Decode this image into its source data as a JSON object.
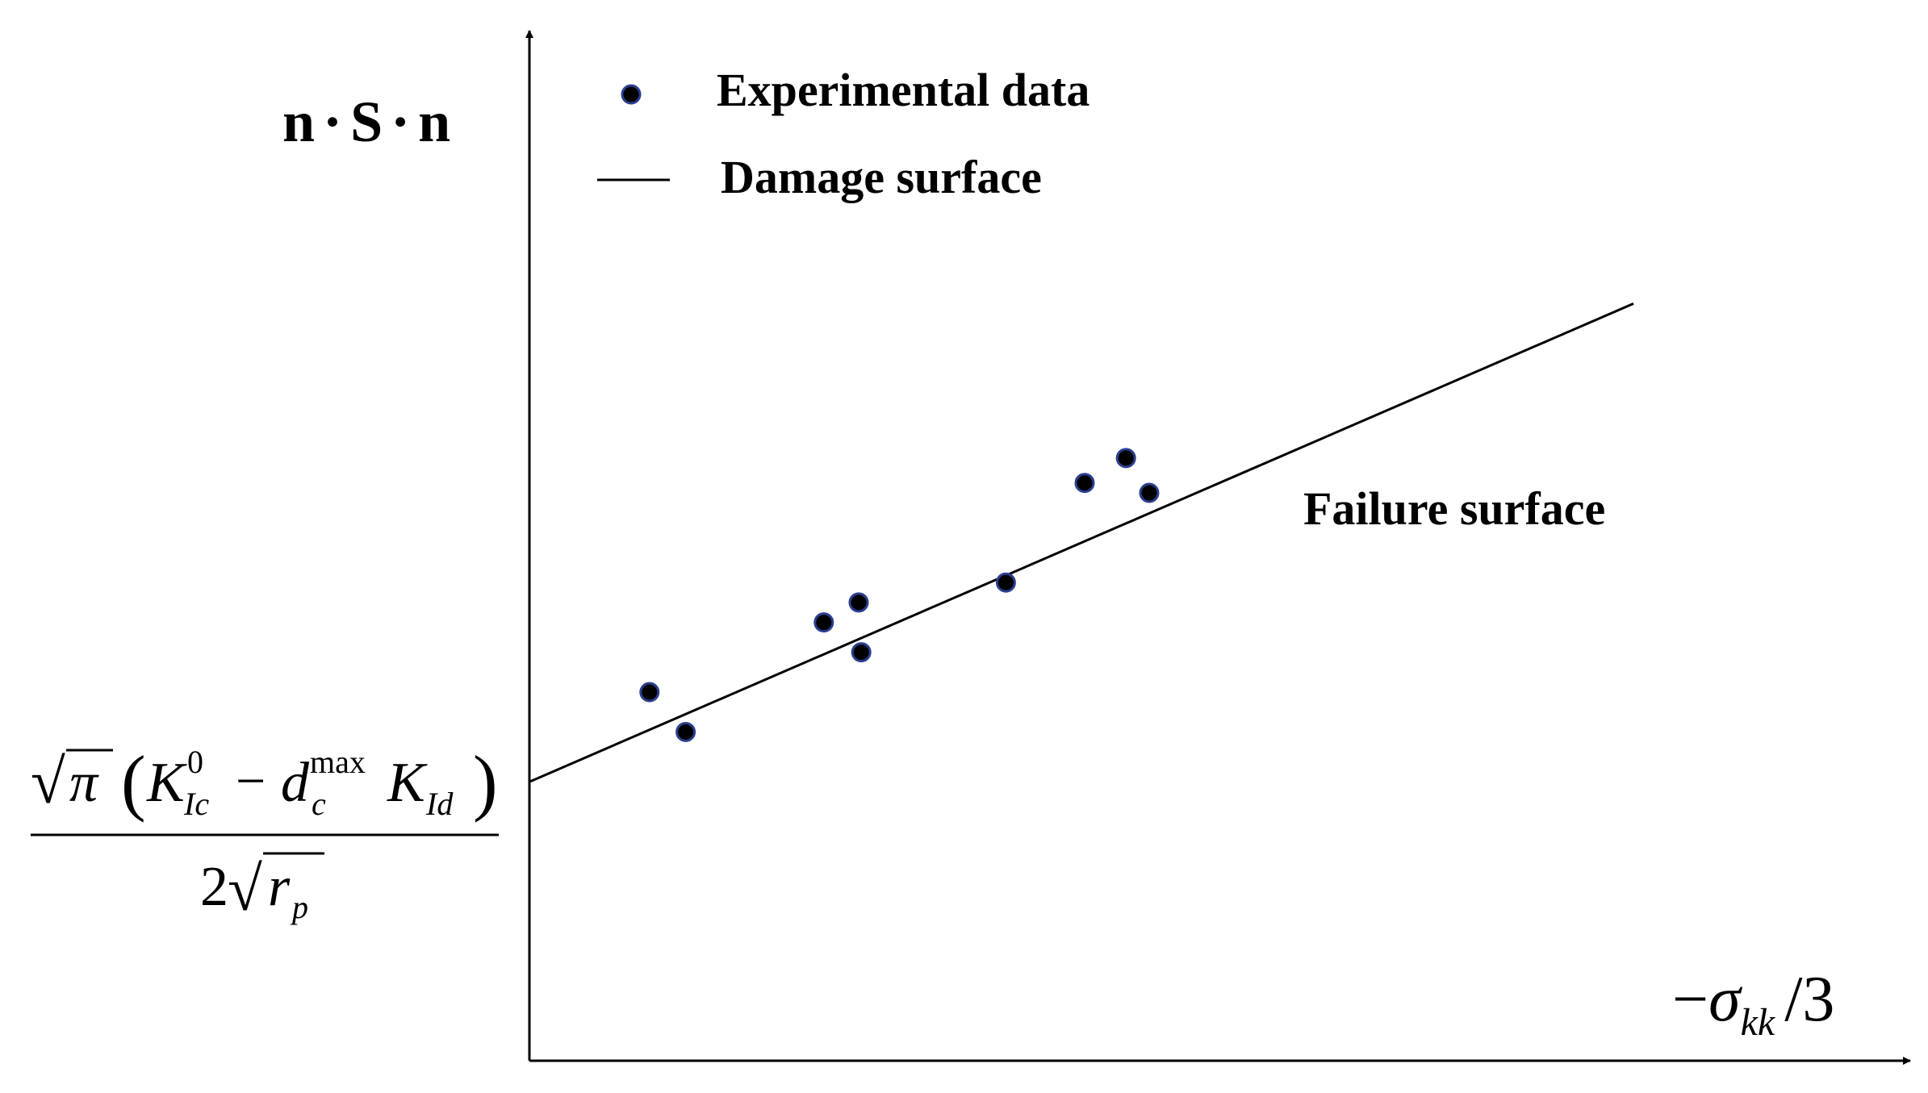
{
  "chart_data": {
    "type": "scatter",
    "title": "",
    "xlabel": {
      "minus": "−",
      "sigma": "σ",
      "subscript": "kk",
      "slash_three": "/3"
    },
    "ylabel": {
      "n1": "n",
      "dot1": "·",
      "s": "S",
      "dot2": "·",
      "n2": "n"
    },
    "xlim": [
      0,
      10
    ],
    "ylim": [
      0,
      10
    ],
    "x_ticks": [],
    "y_ticks": [],
    "grid": false,
    "legend": {
      "placement": "top-left",
      "entries": [
        {
          "label": "Experimental data",
          "marker": "dot"
        },
        {
          "label": "Damage surface",
          "marker": "line"
        }
      ]
    },
    "series": [
      {
        "name": "Experimental data",
        "kind": "scatter",
        "color": "#000000",
        "edge_color": "#2b3f8f",
        "points": [
          {
            "x": 0.93,
            "y": 3.7
          },
          {
            "x": 1.21,
            "y": 3.3
          },
          {
            "x": 2.28,
            "y": 4.4
          },
          {
            "x": 2.55,
            "y": 4.6
          },
          {
            "x": 2.57,
            "y": 4.1
          },
          {
            "x": 3.69,
            "y": 4.8
          },
          {
            "x": 4.3,
            "y": 5.8
          },
          {
            "x": 4.62,
            "y": 6.05
          },
          {
            "x": 4.8,
            "y": 5.7
          }
        ]
      },
      {
        "name": "Damage surface",
        "kind": "line",
        "color": "#000000",
        "points": [
          {
            "x": 0,
            "y": 2.8
          },
          {
            "x": 8.55,
            "y": 7.6
          }
        ]
      }
    ],
    "annotations": {
      "failure_surface": "Failure surface",
      "intercept": {
        "sqrt_sign": "√",
        "pi": "π",
        "open_paren": "(",
        "k": "K",
        "k_sup": "0",
        "k_sub": "Ic",
        "minus": "−",
        "d": "d",
        "d_sup": "max",
        "d_sub": "c",
        "k2": "K",
        "k2_sub": "Id",
        "close_paren": ")",
        "two": "2",
        "r": "r",
        "r_sub": "p"
      }
    }
  }
}
